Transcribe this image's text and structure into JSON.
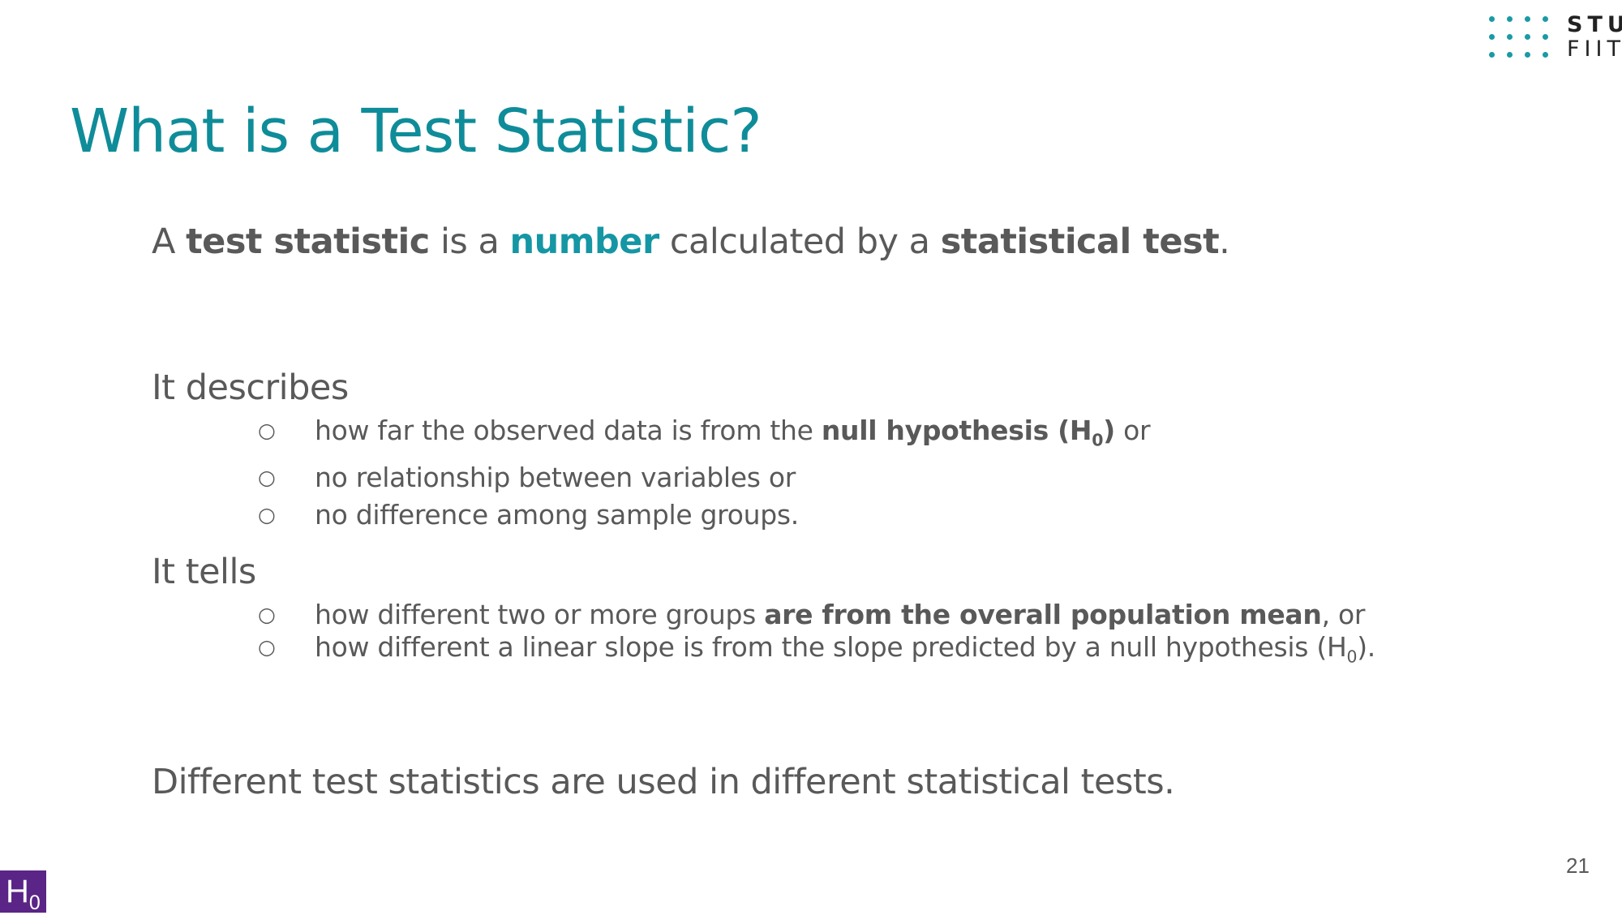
{
  "logo": {
    "line1": "STU",
    "line2": "FIIT",
    "dot_color": "#1a9aa6"
  },
  "title": "What is a Test Statistic?",
  "lead": {
    "t1": "A ",
    "b1": "test statistic",
    "t2": " is a ",
    "b2": "number",
    "t3": " calculated by a ",
    "b3": "statistical test",
    "t4": "."
  },
  "describes": {
    "heading": "It describes",
    "items": [
      {
        "pre": "how far the observed data is from the ",
        "bold": "null hypothesis (H",
        "sub": "0",
        "bold_end": ")",
        "post": " or"
      },
      {
        "text": "no relationship between variables or"
      },
      {
        "text": "no difference among sample groups."
      }
    ]
  },
  "tells": {
    "heading": "It tells",
    "items": [
      {
        "pre": "how different two or more groups ",
        "bold": "are from the overall population mean",
        "post": ", or"
      },
      {
        "pre": "how different a linear slope is from the slope predicted by a null hypothesis (H",
        "sub": "0",
        "post": ")."
      }
    ]
  },
  "closing": "Different test statistics are used in different statistical tests.",
  "page_number": "21",
  "badge": {
    "main": "H",
    "sub": "0"
  },
  "colors": {
    "title": "#0f8c99",
    "accent": "#1596a4",
    "text": "#595959",
    "badge": "#5a2586"
  }
}
